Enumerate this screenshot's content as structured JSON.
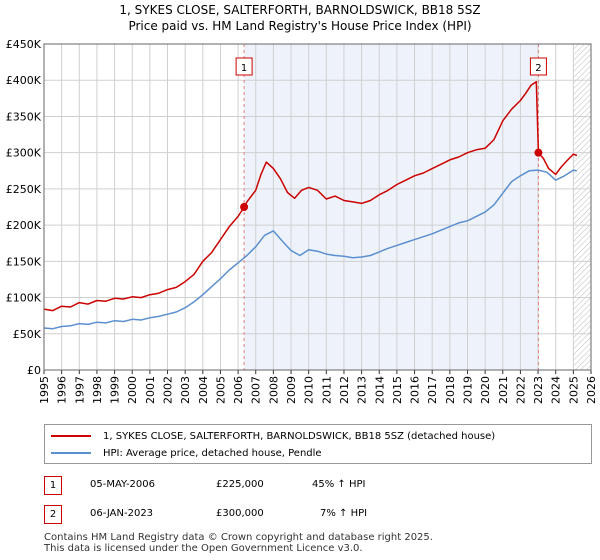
{
  "title_line1": "1, SYKES CLOSE, SALTERFORTH, BARNOLDSWICK, BB18 5SZ",
  "title_line2": "Price paid vs. HM Land Registry's House Price Index (HPI)",
  "colors": {
    "property": "#cc0000",
    "hpi": "#5b8fcf",
    "shade": "#eef3fb",
    "grid": "#d0d0d0",
    "marker_line": "#e08080"
  },
  "chart_data": {
    "type": "line",
    "title": "Price paid vs. HM Land Registry's House Price Index (HPI)",
    "xlim": [
      1995,
      2026
    ],
    "ylim": [
      0,
      450000
    ],
    "y_ticks": [
      0,
      50000,
      100000,
      150000,
      200000,
      250000,
      300000,
      350000,
      400000,
      450000
    ],
    "y_tick_labels": [
      "£0",
      "£50K",
      "£100K",
      "£150K",
      "£200K",
      "£250K",
      "£300K",
      "£350K",
      "£400K",
      "£450K"
    ],
    "x_ticks": [
      1995,
      1996,
      1997,
      1998,
      1999,
      2000,
      2001,
      2002,
      2003,
      2004,
      2005,
      2006,
      2007,
      2008,
      2009,
      2010,
      2011,
      2012,
      2013,
      2014,
      2015,
      2016,
      2017,
      2018,
      2019,
      2020,
      2021,
      2022,
      2023,
      2024,
      2025,
      2026
    ],
    "x_tick_labels": [
      "1995",
      "1996",
      "1997",
      "1998",
      "1999",
      "2000",
      "2001",
      "2002",
      "2003",
      "2004",
      "2005",
      "2006",
      "2007",
      "2008",
      "2009",
      "2010",
      "2011",
      "2012",
      "2013",
      "2014",
      "2015",
      "2016",
      "2017",
      "2018",
      "2019",
      "2020",
      "2021",
      "2022",
      "2023",
      "2024",
      "2025",
      "2026"
    ],
    "shaded_range": [
      2006.34,
      2023.02
    ],
    "future_hatch_from": 2025.0,
    "series": [
      {
        "name": "1, SYKES CLOSE, SALTERFORTH, BARNOLDSWICK, BB18 5SZ (detached house)",
        "color": "#cc0000",
        "x": [
          1995,
          1995.5,
          1996,
          1996.5,
          1997,
          1997.5,
          1998,
          1998.5,
          1999,
          1999.5,
          2000,
          2000.5,
          2001,
          2001.5,
          2002,
          2002.5,
          2003,
          2003.5,
          2004,
          2004.5,
          2005,
          2005.5,
          2006,
          2006.34,
          2006.5,
          2007,
          2007.3,
          2007.6,
          2008,
          2008.4,
          2008.8,
          2009.2,
          2009.6,
          2010,
          2010.5,
          2011,
          2011.5,
          2012,
          2012.5,
          2013,
          2013.5,
          2014,
          2014.5,
          2015,
          2015.5,
          2016,
          2016.5,
          2017,
          2017.5,
          2018,
          2018.5,
          2019,
          2019.5,
          2020,
          2020.5,
          2021,
          2021.5,
          2022,
          2022.3,
          2022.6,
          2022.9,
          2023.02,
          2023.3,
          2023.6,
          2024,
          2024.3,
          2024.6,
          2025,
          2025.2
        ],
        "values": [
          84000,
          82000,
          88000,
          87000,
          93000,
          91000,
          96000,
          95000,
          99000,
          98000,
          101000,
          100000,
          104000,
          106000,
          111000,
          114000,
          122000,
          132000,
          150000,
          162000,
          180000,
          198000,
          212000,
          225000,
          232000,
          248000,
          270000,
          287000,
          278000,
          264000,
          245000,
          237000,
          248000,
          252000,
          248000,
          236000,
          240000,
          234000,
          232000,
          230000,
          234000,
          242000,
          248000,
          256000,
          262000,
          268000,
          272000,
          278000,
          284000,
          290000,
          294000,
          300000,
          304000,
          306000,
          318000,
          344000,
          360000,
          372000,
          382000,
          393000,
          398000,
          300000,
          292000,
          278000,
          270000,
          280000,
          288000,
          298000,
          296000
        ]
      },
      {
        "name": "HPI: Average price, detached house, Pendle",
        "color": "#5b8fcf",
        "x": [
          1995,
          1995.5,
          1996,
          1996.5,
          1997,
          1997.5,
          1998,
          1998.5,
          1999,
          1999.5,
          2000,
          2000.5,
          2001,
          2001.5,
          2002,
          2002.5,
          2003,
          2003.5,
          2004,
          2004.5,
          2005,
          2005.5,
          2006,
          2006.5,
          2007,
          2007.5,
          2008,
          2008.5,
          2009,
          2009.5,
          2010,
          2010.5,
          2011,
          2011.5,
          2012,
          2012.5,
          2013,
          2013.5,
          2014,
          2014.5,
          2015,
          2015.5,
          2016,
          2016.5,
          2017,
          2017.5,
          2018,
          2018.5,
          2019,
          2019.5,
          2020,
          2020.5,
          2021,
          2021.5,
          2022,
          2022.5,
          2023,
          2023.5,
          2024,
          2024.5,
          2025,
          2025.2
        ],
        "values": [
          58000,
          57000,
          60000,
          61000,
          64000,
          63000,
          66000,
          65000,
          68000,
          67000,
          70000,
          69000,
          72000,
          74000,
          77000,
          80000,
          86000,
          94000,
          104000,
          115000,
          126000,
          138000,
          148000,
          158000,
          170000,
          186000,
          192000,
          178000,
          165000,
          158000,
          166000,
          164000,
          160000,
          158000,
          157000,
          155000,
          156000,
          158000,
          163000,
          168000,
          172000,
          176000,
          180000,
          184000,
          188000,
          193000,
          198000,
          203000,
          206000,
          212000,
          218000,
          228000,
          244000,
          260000,
          268000,
          275000,
          276000,
          273000,
          262000,
          268000,
          276000,
          275000
        ]
      }
    ],
    "sale_markers": [
      {
        "id": "1",
        "x": 2006.34,
        "value": 225000
      },
      {
        "id": "2",
        "x": 2023.02,
        "value": 300000
      }
    ]
  },
  "legend": {
    "property_label": "1, SYKES CLOSE, SALTERFORTH, BARNOLDSWICK, BB18 5SZ (detached house)",
    "hpi_label": "HPI: Average price, detached house, Pendle"
  },
  "transactions": [
    {
      "id": "1",
      "date": "05-MAY-2006",
      "price": "£225,000",
      "hpi_change": "45% ↑ HPI"
    },
    {
      "id": "2",
      "date": "06-JAN-2023",
      "price": "£300,000",
      "hpi_change": "7% ↑ HPI"
    }
  ],
  "footer_line1": "Contains HM Land Registry data © Crown copyright and database right 2025.",
  "footer_line2": "This data is licensed under the Open Government Licence v3.0."
}
